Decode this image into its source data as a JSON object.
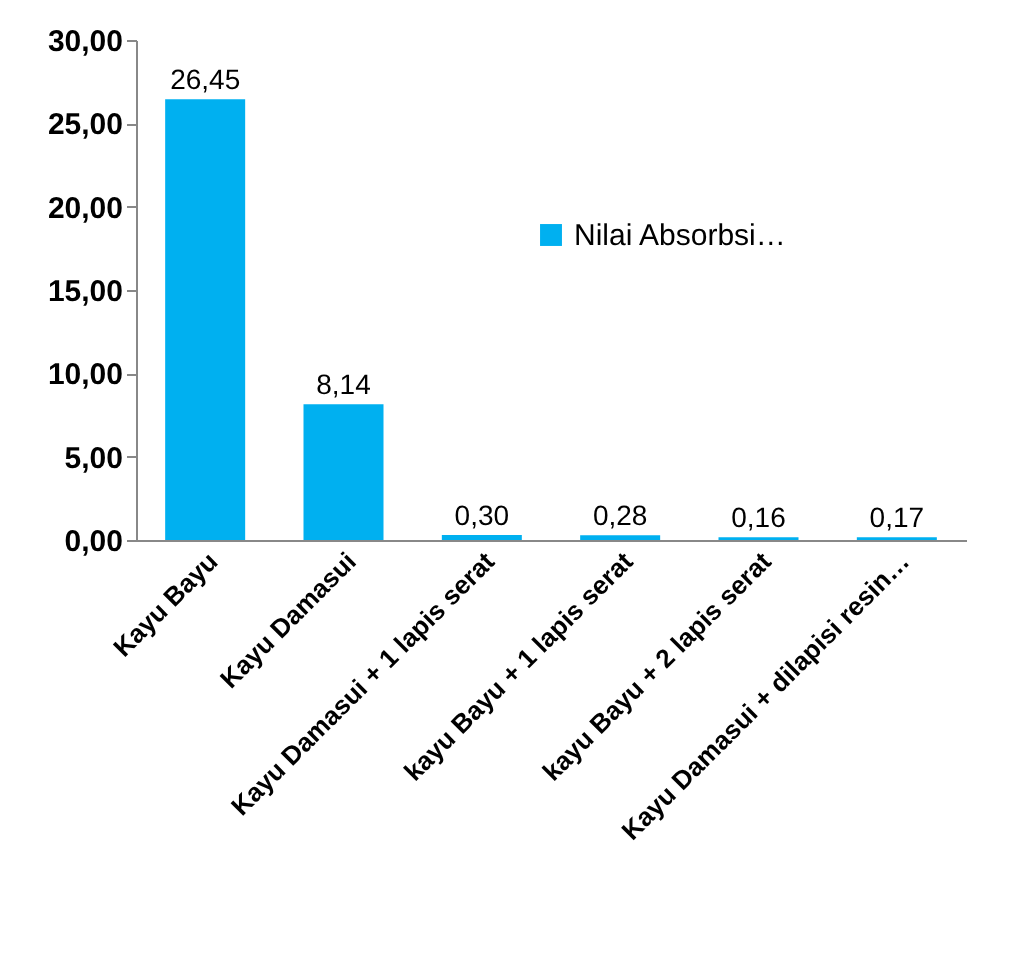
{
  "chart_data": {
    "type": "bar",
    "categories": [
      "Kayu Bayu",
      "Kayu Damasui",
      "Kayu Damasui + 1 lapis serat",
      "kayu Bayu + 1 lapis serat",
      "kayu Bayu + 2 lapis serat",
      "Kayu Damasui + dilapisi resin…"
    ],
    "series": [
      {
        "name": "Nilai Absorbsi…",
        "color": "#00b0f0",
        "values": [
          26.45,
          8.14,
          0.3,
          0.28,
          0.16,
          0.17
        ],
        "value_labels": [
          "26,45",
          "8,14",
          "0,30",
          "0,28",
          "0,16",
          "0,17"
        ]
      }
    ],
    "ylim": [
      0,
      30
    ],
    "yticks": [
      {
        "value": 0,
        "label": "0,00"
      },
      {
        "value": 5,
        "label": "5,00"
      },
      {
        "value": 10,
        "label": "10,00"
      },
      {
        "value": 15,
        "label": "15,00"
      },
      {
        "value": 20,
        "label": "20,00"
      },
      {
        "value": 25,
        "label": "25,00"
      },
      {
        "value": 30,
        "label": "30,00"
      }
    ],
    "legend": "right"
  }
}
